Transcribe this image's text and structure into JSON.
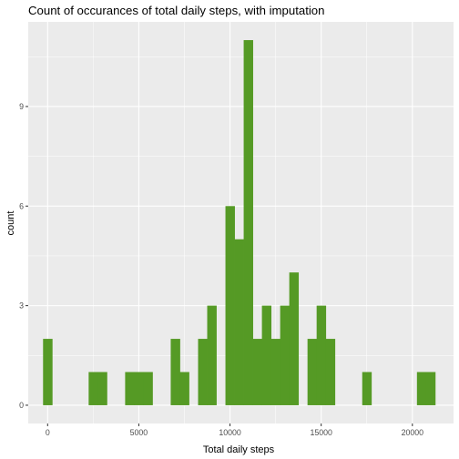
{
  "chart_data": {
    "type": "bar",
    "title": "Count of occurances of total daily steps, with imputation",
    "xlabel": "Total daily steps",
    "ylabel": "count",
    "x_ticks": [
      0,
      5000,
      10000,
      15000,
      20000
    ],
    "y_ticks": [
      0,
      3,
      6,
      9
    ],
    "xlim": [
      -1062.5,
      22256.2
    ],
    "ylim": [
      -0.55,
      11.55
    ],
    "bin_width": 500,
    "grid": true,
    "background": "#ebebeb",
    "grid_color": "#ffffff",
    "bar_color": "#559a25",
    "bins": [
      {
        "x": 0,
        "count": 2
      },
      {
        "x": 2500,
        "count": 1
      },
      {
        "x": 3000,
        "count": 1
      },
      {
        "x": 4500,
        "count": 1
      },
      {
        "x": 5000,
        "count": 1
      },
      {
        "x": 5500,
        "count": 1
      },
      {
        "x": 7000,
        "count": 2
      },
      {
        "x": 7500,
        "count": 1
      },
      {
        "x": 8500,
        "count": 2
      },
      {
        "x": 9000,
        "count": 3
      },
      {
        "x": 10000,
        "count": 6
      },
      {
        "x": 10500,
        "count": 5
      },
      {
        "x": 11000,
        "count": 11
      },
      {
        "x": 11500,
        "count": 2
      },
      {
        "x": 12000,
        "count": 3
      },
      {
        "x": 12500,
        "count": 2
      },
      {
        "x": 13000,
        "count": 3
      },
      {
        "x": 13500,
        "count": 4
      },
      {
        "x": 14500,
        "count": 2
      },
      {
        "x": 15000,
        "count": 3
      },
      {
        "x": 15500,
        "count": 2
      },
      {
        "x": 17500,
        "count": 1
      },
      {
        "x": 20500,
        "count": 1
      },
      {
        "x": 21000,
        "count": 1
      }
    ]
  }
}
